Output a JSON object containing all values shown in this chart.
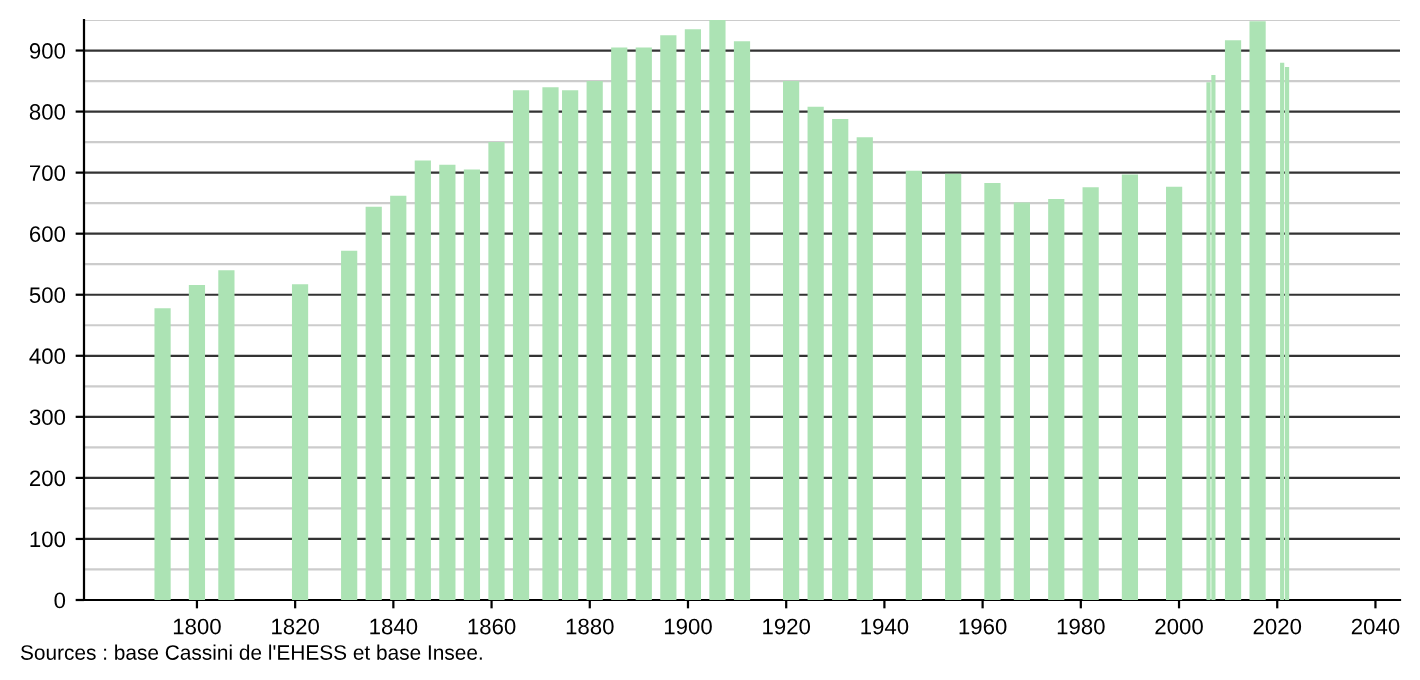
{
  "chart_data": {
    "type": "bar",
    "x": [
      1793,
      1800,
      1806,
      1821,
      1831,
      1836,
      1841,
      1846,
      1851,
      1856,
      1861,
      1866,
      1872,
      1876,
      1881,
      1886,
      1891,
      1896,
      1901,
      1906,
      1911,
      1921,
      1926,
      1931,
      1936,
      1946,
      1954,
      1962,
      1968,
      1975,
      1982,
      1990,
      1999,
      2006,
      2007,
      2011,
      2016,
      2021,
      2022
    ],
    "values": [
      478,
      516,
      540,
      517,
      572,
      644,
      662,
      720,
      713,
      705,
      750,
      835,
      840,
      835,
      850,
      905,
      905,
      925,
      935,
      950,
      915,
      850,
      808,
      788,
      758,
      703,
      698,
      683,
      651,
      657,
      676,
      697,
      677,
      848,
      860,
      917,
      948,
      880,
      873
    ],
    "color": "#ace3b4",
    "xlim": [
      1777,
      2045
    ],
    "xticks": [
      1800,
      1820,
      1840,
      1860,
      1880,
      1900,
      1920,
      1940,
      1960,
      1980,
      2000,
      2020,
      2040
    ],
    "ylim": [
      0,
      950
    ],
    "yticks": [
      0,
      100,
      200,
      300,
      400,
      500,
      600,
      700,
      800,
      900
    ],
    "grid": "y",
    "annotations": [
      "Sources : base Cassini de l'EHESS et base Insee."
    ]
  }
}
